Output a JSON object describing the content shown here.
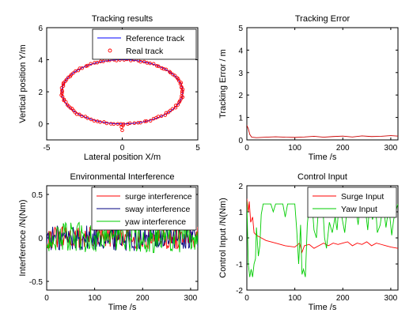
{
  "chart_data": [
    {
      "type": "scatter",
      "title": "Tracking results",
      "xlabel": "Lateral position X/m",
      "ylabel": "Vertical position Y/m",
      "xlim": [
        -5,
        5
      ],
      "ylim": [
        -1,
        6
      ],
      "xticks": [
        -5,
        0,
        5
      ],
      "yticks": [
        0,
        2,
        4,
        6
      ],
      "legend_position": "top-right",
      "series": [
        {
          "name": "Reference track",
          "style": "line",
          "color": "#0000ff",
          "shape": "ellipse",
          "center": [
            0,
            2
          ],
          "radius_x": 4,
          "radius_y": 2
        },
        {
          "name": "Real track",
          "style": "markers",
          "color": "#ff0000",
          "shape": "ellipse",
          "center": [
            0,
            2
          ],
          "radius_x": 4,
          "radius_y": 2,
          "start_point": [
            0,
            -0.4
          ]
        }
      ]
    },
    {
      "type": "line",
      "title": "Tracking Error",
      "xlabel": "Time /s",
      "ylabel": "Tracking Error / m",
      "xlim": [
        0,
        315
      ],
      "ylim": [
        0,
        5
      ],
      "xticks": [
        0,
        100,
        200,
        300
      ],
      "yticks": [
        0,
        1,
        2,
        3,
        4,
        5
      ],
      "series": [
        {
          "color": "#cc0000",
          "points": [
            [
              0,
              0.65
            ],
            [
              3,
              0.5
            ],
            [
              6,
              0.25
            ],
            [
              10,
              0.12
            ],
            [
              20,
              0.1
            ],
            [
              40,
              0.12
            ],
            [
              60,
              0.14
            ],
            [
              80,
              0.12
            ],
            [
              100,
              0.11
            ],
            [
              120,
              0.13
            ],
            [
              140,
              0.16
            ],
            [
              160,
              0.12
            ],
            [
              180,
              0.15
            ],
            [
              200,
              0.17
            ],
            [
              220,
              0.13
            ],
            [
              240,
              0.18
            ],
            [
              260,
              0.15
            ],
            [
              280,
              0.16
            ],
            [
              300,
              0.19
            ],
            [
              315,
              0.17
            ]
          ]
        }
      ]
    },
    {
      "type": "line",
      "title": "Environmental Interference",
      "xlabel": "Time /s",
      "ylabel": "Interference /N(Nm)",
      "xlim": [
        0,
        315
      ],
      "ylim": [
        -0.6,
        0.6
      ],
      "xticks": [
        0,
        100,
        200,
        300
      ],
      "yticks": [
        -0.5,
        0,
        0.5
      ],
      "legend_position": "top-right",
      "series": [
        {
          "name": "surge interference",
          "color": "#ff0000",
          "amplitude": 0.13
        },
        {
          "name": "sway interference",
          "color": "#000080",
          "amplitude": 0.15
        },
        {
          "name": "yaw interference",
          "color": "#00cc00",
          "amplitude": 0.18
        }
      ]
    },
    {
      "type": "line",
      "title": "Control Input",
      "xlabel": "Time /s",
      "ylabel": "Control Input /N(Nm)",
      "xlim": [
        0,
        315
      ],
      "ylim": [
        -2,
        2
      ],
      "xticks": [
        0,
        100,
        200,
        300
      ],
      "yticks": [
        -2,
        -1,
        0,
        1,
        2
      ],
      "legend_position": "top-right",
      "series": [
        {
          "name": "Surge Input",
          "color": "#ff0000",
          "points": [
            [
              0,
              1.5
            ],
            [
              3,
              1.0
            ],
            [
              5,
              1.4
            ],
            [
              8,
              0.6
            ],
            [
              12,
              0.8
            ],
            [
              15,
              0.2
            ],
            [
              20,
              0.1
            ],
            [
              30,
              0.0
            ],
            [
              40,
              -0.1
            ],
            [
              50,
              -0.15
            ],
            [
              60,
              -0.2
            ],
            [
              80,
              -0.3
            ],
            [
              100,
              -0.35
            ],
            [
              110,
              -0.2
            ],
            [
              115,
              -0.55
            ],
            [
              120,
              -0.3
            ],
            [
              130,
              -0.25
            ],
            [
              140,
              -0.4
            ],
            [
              150,
              -0.3
            ],
            [
              160,
              -0.2
            ],
            [
              170,
              -0.3
            ],
            [
              180,
              -0.2
            ],
            [
              190,
              -0.25
            ],
            [
              200,
              -0.2
            ],
            [
              210,
              -0.15
            ],
            [
              220,
              -0.3
            ],
            [
              230,
              -0.2
            ],
            [
              240,
              -0.25
            ],
            [
              250,
              -0.15
            ],
            [
              260,
              -0.3
            ],
            [
              270,
              -0.2
            ],
            [
              280,
              -0.25
            ],
            [
              290,
              -0.3
            ],
            [
              300,
              -0.35
            ],
            [
              315,
              -0.4
            ]
          ]
        },
        {
          "name": "Yaw Input",
          "color": "#00cc00",
          "points": [
            [
              0,
              1.4
            ],
            [
              3,
              -1.0
            ],
            [
              6,
              -1.5
            ],
            [
              9,
              -1.2
            ],
            [
              12,
              -1.5
            ],
            [
              15,
              -1.0
            ],
            [
              18,
              -0.8
            ],
            [
              20,
              0.4
            ],
            [
              24,
              -0.7
            ],
            [
              27,
              -0.3
            ],
            [
              30,
              0.9
            ],
            [
              34,
              1.3
            ],
            [
              50,
              1.3
            ],
            [
              55,
              1.0
            ],
            [
              60,
              1.3
            ],
            [
              75,
              1.3
            ],
            [
              80,
              0.8
            ],
            [
              85,
              1.3
            ],
            [
              100,
              1.3
            ],
            [
              104,
              0.3
            ],
            [
              108,
              -1.0
            ],
            [
              112,
              0.5
            ],
            [
              115,
              -1.4
            ],
            [
              118,
              -1.2
            ],
            [
              122,
              -1.5
            ],
            [
              126,
              0.5
            ],
            [
              130,
              1.3
            ],
            [
              136,
              1.3
            ],
            [
              140,
              0.3
            ],
            [
              145,
              0.0
            ],
            [
              150,
              1.3
            ],
            [
              158,
              1.3
            ],
            [
              162,
              0.0
            ],
            [
              166,
              -0.4
            ],
            [
              172,
              0.6
            ],
            [
              178,
              0.2
            ],
            [
              184,
              0.8
            ],
            [
              188,
              0.3
            ],
            [
              192,
              1.3
            ],
            [
              198,
              0.8
            ],
            [
              204,
              0.2
            ],
            [
              210,
              1.3
            ],
            [
              218,
              1.3
            ],
            [
              222,
              0.9
            ],
            [
              226,
              1.3
            ],
            [
              232,
              0.5
            ],
            [
              236,
              1.3
            ],
            [
              242,
              1.0
            ],
            [
              246,
              1.3
            ],
            [
              252,
              0.3
            ],
            [
              256,
              1.3
            ],
            [
              262,
              0.7
            ],
            [
              268,
              1.3
            ],
            [
              272,
              0.2
            ],
            [
              278,
              0.5
            ],
            [
              284,
              1.3
            ],
            [
              290,
              0.4
            ],
            [
              296,
              1.2
            ],
            [
              302,
              0.1
            ],
            [
              306,
              0.7
            ],
            [
              310,
              1.0
            ],
            [
              315,
              1.3
            ]
          ]
        }
      ]
    }
  ]
}
